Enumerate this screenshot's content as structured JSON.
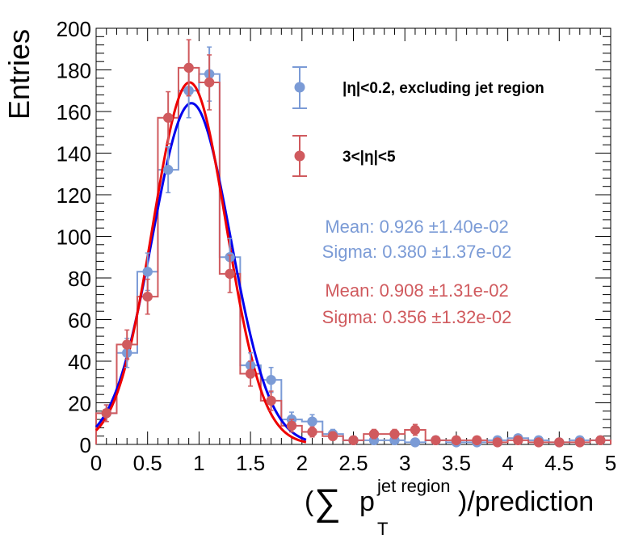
{
  "chart_data": {
    "type": "histogram",
    "ylabel": "Entries",
    "xlabel_prefix": "(",
    "xlabel_sum": "∑",
    "xlabel_p": "p",
    "xlabel_sup": "jet region",
    "xlabel_sub": "T",
    "xlabel_suffix": ")/prediction",
    "xlim": [
      0,
      5
    ],
    "ylim": [
      0,
      200
    ],
    "x_ticks": [
      "0",
      "0.5",
      "1",
      "1.5",
      "2",
      "2.5",
      "3",
      "3.5",
      "4",
      "4.5",
      "5"
    ],
    "y_ticks": [
      "0",
      "20",
      "40",
      "60",
      "80",
      "100",
      "120",
      "140",
      "160",
      "180",
      "200"
    ],
    "bin_edges": [
      0,
      0.2,
      0.4,
      0.6,
      0.8,
      1.0,
      1.2,
      1.4,
      1.6,
      1.8,
      2.0,
      2.2,
      2.4,
      2.6,
      2.8,
      3.0,
      3.2,
      3.4,
      3.6,
      3.8,
      4.0,
      4.2,
      4.4,
      4.6,
      4.8,
      5.0
    ],
    "series": [
      {
        "name": "|η|<0.2, excluding jet region",
        "color": "#7b9bd6",
        "fit_color": "#0000ee",
        "values": [
          15,
          44,
          83,
          132,
          170,
          178,
          90,
          38,
          31,
          12,
          11,
          5,
          2,
          2,
          2,
          1,
          2,
          1,
          1,
          2,
          3,
          2,
          1,
          2,
          2
        ],
        "errors": [
          4,
          7,
          9,
          11,
          13,
          13,
          9,
          6,
          6,
          3.5,
          3.3,
          2.2,
          1.4,
          1.4,
          1.4,
          1,
          1.4,
          1,
          1,
          1.4,
          1.7,
          1.4,
          1,
          1.4,
          1.4
        ],
        "mean_label": "Mean: 0.926",
        "mean_err": "±1.40e-02",
        "sigma_label": "Sigma: 0.380",
        "sigma_err": "±1.37e-02",
        "fit": {
          "mean": 0.926,
          "sigma": 0.38,
          "amplitude": 164
        }
      },
      {
        "name": "3<|η|<5",
        "color": "#d05a5e",
        "fit_color": "#ee0000",
        "values": [
          15,
          48,
          71,
          157,
          181,
          174,
          82,
          34,
          21,
          9,
          6,
          4,
          2,
          5,
          5,
          7,
          2,
          2,
          2,
          1,
          2,
          1,
          1,
          1,
          2
        ],
        "errors": [
          4,
          7,
          8.4,
          12.5,
          13.5,
          13.2,
          9,
          6,
          4.6,
          3,
          2.4,
          2,
          1.4,
          2.2,
          2.2,
          2.6,
          1.4,
          1.4,
          1.4,
          1,
          1.4,
          1,
          1,
          1,
          1.4
        ],
        "mean_label": "Mean: 0.908",
        "mean_err": "±1.31e-02",
        "sigma_label": "Sigma: 0.356",
        "sigma_err": "±1.32e-02",
        "fit": {
          "mean": 0.908,
          "sigma": 0.356,
          "amplitude": 174
        }
      }
    ],
    "legend_position": "top-right",
    "grid": false
  }
}
